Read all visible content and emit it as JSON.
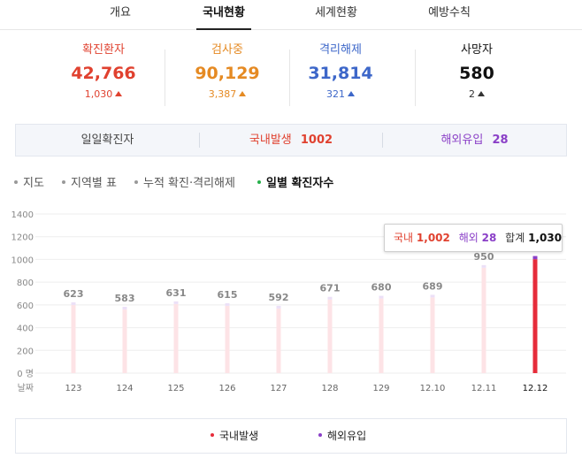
{
  "tabs": [
    {
      "label": "개요",
      "active": false
    },
    {
      "label": "국내현황",
      "active": true
    },
    {
      "label": "세계현황",
      "active": false
    },
    {
      "label": "예방수칙",
      "active": false
    }
  ],
  "stats": [
    {
      "label": "확진환자",
      "value": "42,766",
      "delta": "1,030",
      "color": "#e0412f"
    },
    {
      "label": "검사중",
      "value": "90,129",
      "delta": "3,387",
      "color": "#e58a23"
    },
    {
      "label": "격리해제",
      "value": "31,814",
      "delta": "321",
      "color": "#3d67c9"
    },
    {
      "label": "사망자",
      "value": "580",
      "delta": "2",
      "color": "#111111"
    }
  ],
  "summary": {
    "title": "일일확진자",
    "domestic_label": "국내발생",
    "domestic_value": "1002",
    "overseas_label": "해외유입",
    "overseas_value": "28",
    "domestic_color": "#e0412f",
    "overseas_color": "#8a3fc7"
  },
  "subtabs": [
    {
      "label": "지도",
      "active": false
    },
    {
      "label": "지역별 표",
      "active": false
    },
    {
      "label": "누적 확진·격리해제",
      "active": false
    },
    {
      "label": "일별 확진자수",
      "active": true
    }
  ],
  "chart_data": {
    "type": "bar",
    "categories": [
      "12.3",
      "12.4",
      "12.5",
      "12.6",
      "12.7",
      "12.8",
      "12.9",
      "12.10",
      "12.11",
      "12.12"
    ],
    "category_labels": [
      "123",
      "124",
      "125",
      "126",
      "127",
      "128",
      "129",
      "12.10",
      "12.11",
      "12.12"
    ],
    "series": [
      {
        "name": "국내발생",
        "values": [
          null,
          null,
          null,
          null,
          null,
          null,
          null,
          null,
          null,
          1002
        ],
        "color": "#e62c3a"
      },
      {
        "name": "해외유입",
        "values": [
          null,
          null,
          null,
          null,
          null,
          null,
          null,
          null,
          null,
          28
        ],
        "color": "#8a3fc7"
      }
    ],
    "totals": [
      623,
      583,
      631,
      615,
      592,
      671,
      680,
      689,
      950,
      1030
    ],
    "total_labels": [
      "623",
      "583",
      "631",
      "615",
      "592",
      "671",
      "680",
      "689",
      "950",
      ""
    ],
    "y_ticks": [
      "1400",
      "1200",
      "1000",
      "800",
      "600",
      "400",
      "200",
      "0 명"
    ],
    "ylim": [
      0,
      1400
    ],
    "xlabel": "날짜",
    "faded_color": "#fde3e6",
    "overseas_faded_color": "#ece0f7",
    "grid": true
  },
  "tooltip": {
    "domestic_label": "국내",
    "domestic_value": "1,002",
    "overseas_label": "해외",
    "overseas_value": "28",
    "total_label": "합계",
    "total_value": "1,030"
  },
  "legend": [
    {
      "label": "국내발생",
      "color": "#e62c3a"
    },
    {
      "label": "해외유입",
      "color": "#8a3fc7"
    }
  ]
}
